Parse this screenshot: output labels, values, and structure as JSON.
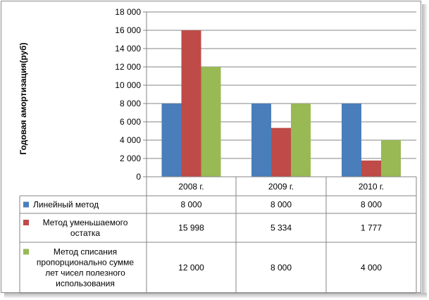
{
  "chart_data": {
    "type": "bar",
    "title": "",
    "xlabel": "",
    "ylabel": "Годовая амортизация(руб)",
    "ylim": [
      0,
      18000
    ],
    "yticks": [
      0,
      2000,
      4000,
      6000,
      8000,
      10000,
      12000,
      14000,
      16000,
      18000
    ],
    "ytick_labels": [
      "0",
      "2 000",
      "4 000",
      "6 000",
      "8 000",
      "10 000",
      "12 000",
      "14 000",
      "16 000",
      "18 000"
    ],
    "categories": [
      "2008 г.",
      "2009 г.",
      "2010 г."
    ],
    "grid": true,
    "legend_placement": "data-table",
    "series": [
      {
        "name": "Линейный метод",
        "name_lines": [
          "Линейный метод"
        ],
        "color": "#4a7ebb",
        "values": [
          8000,
          8000,
          8000
        ],
        "labels": [
          "8 000",
          "8 000",
          "8 000"
        ]
      },
      {
        "name": "Метод уменьшаемого остатка",
        "name_lines": [
          "Метод уменьшаемого",
          "остатка"
        ],
        "color": "#be4b48",
        "values": [
          15998,
          5334,
          1777
        ],
        "labels": [
          "15 998",
          "5 334",
          "1 777"
        ]
      },
      {
        "name": "Метод списания пропорционально сумме лет чисел полезного использования",
        "name_lines": [
          "Метод списания",
          "пропорционально сумме",
          "лет чисел полезного",
          "использования"
        ],
        "color": "#98b954",
        "values": [
          12000,
          8000,
          4000
        ],
        "labels": [
          "12 000",
          "8 000",
          "4 000"
        ]
      }
    ]
  }
}
